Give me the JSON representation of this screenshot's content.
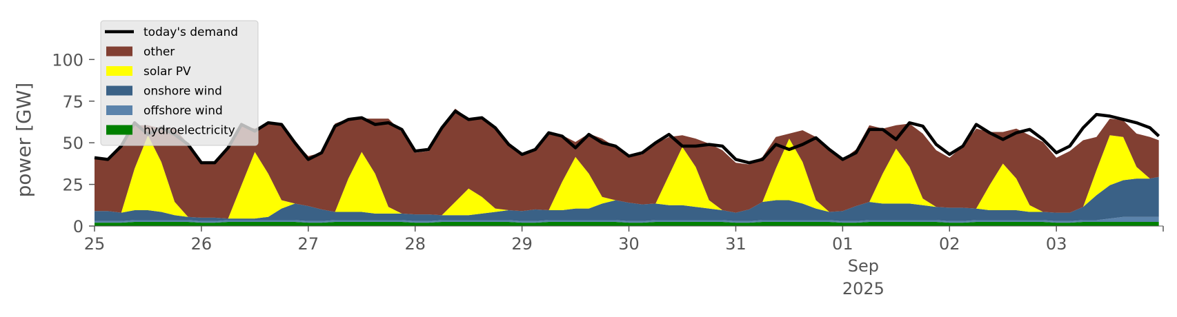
{
  "chart_data": {
    "type": "area",
    "stacked": true,
    "ylabel": "power [GW]",
    "ylim": [
      0,
      120
    ],
    "yticks": [
      0,
      25,
      50,
      75,
      100
    ],
    "xlim": [
      "2025-08-25",
      "2025-09-03T23:59"
    ],
    "xticks": [
      {
        "x": "2025-08-25",
        "label": "25"
      },
      {
        "x": "2025-08-26",
        "label": "26"
      },
      {
        "x": "2025-08-27",
        "label": "27"
      },
      {
        "x": "2025-08-28",
        "label": "28"
      },
      {
        "x": "2025-08-29",
        "label": "29"
      },
      {
        "x": "2025-08-30",
        "label": "30"
      },
      {
        "x": "2025-08-31",
        "label": "31"
      },
      {
        "x": "2025-09-01",
        "label": "01"
      },
      {
        "x": "2025-09-02",
        "label": "02"
      },
      {
        "x": "2025-09-03",
        "label": "03"
      }
    ],
    "x_secondary_label": [
      "Sep",
      "2025"
    ],
    "x": [
      "08-25 00:00",
      "08-25 03:00",
      "08-25 06:00",
      "08-25 09:00",
      "08-25 12:00",
      "08-25 15:00",
      "08-25 18:00",
      "08-25 21:00",
      "08-26 00:00",
      "08-26 03:00",
      "08-26 06:00",
      "08-26 09:00",
      "08-26 12:00",
      "08-26 15:00",
      "08-26 18:00",
      "08-26 21:00",
      "08-27 00:00",
      "08-27 03:00",
      "08-27 06:00",
      "08-27 09:00",
      "08-27 12:00",
      "08-27 15:00",
      "08-27 18:00",
      "08-27 21:00",
      "08-28 00:00",
      "08-28 03:00",
      "08-28 06:00",
      "08-28 09:00",
      "08-28 12:00",
      "08-28 15:00",
      "08-28 18:00",
      "08-28 21:00",
      "08-29 00:00",
      "08-29 03:00",
      "08-29 06:00",
      "08-29 09:00",
      "08-29 12:00",
      "08-29 15:00",
      "08-29 18:00",
      "08-29 21:00",
      "08-30 00:00",
      "08-30 03:00",
      "08-30 06:00",
      "08-30 09:00",
      "08-30 12:00",
      "08-30 15:00",
      "08-30 18:00",
      "08-30 21:00",
      "08-31 00:00",
      "08-31 03:00",
      "08-31 06:00",
      "08-31 09:00",
      "08-31 12:00",
      "08-31 15:00",
      "08-31 18:00",
      "08-31 21:00",
      "09-01 00:00",
      "09-01 03:00",
      "09-01 06:00",
      "09-01 09:00",
      "09-01 12:00",
      "09-01 15:00",
      "09-01 18:00",
      "09-01 21:00",
      "09-02 00:00",
      "09-02 03:00",
      "09-02 06:00",
      "09-02 09:00",
      "09-02 12:00",
      "09-02 15:00",
      "09-02 18:00",
      "09-02 21:00",
      "09-03 00:00",
      "09-03 03:00",
      "09-03 06:00",
      "09-03 09:00",
      "09-03 12:00",
      "09-03 15:00",
      "09-03 18:00",
      "09-03 21:00",
      "09-03 23:00"
    ],
    "series": [
      {
        "name": "hydroelectricity",
        "color": "#008000",
        "values": [
          2,
          2,
          2,
          2.5,
          2.5,
          2.5,
          2.5,
          2.5,
          2,
          2,
          2.5,
          2.5,
          2.5,
          2.5,
          2.5,
          2.5,
          2,
          2,
          2.5,
          2.5,
          2.5,
          2.5,
          2.5,
          2.5,
          2,
          2,
          2.5,
          2.5,
          2.5,
          2.5,
          2.5,
          2.5,
          2,
          2,
          2.5,
          2.5,
          2.5,
          2.5,
          2.5,
          2.5,
          2,
          2,
          2.5,
          2.5,
          2.5,
          2.5,
          2.5,
          2.5,
          2,
          2,
          2.5,
          2.5,
          2.5,
          2.5,
          2.5,
          2.5,
          2,
          2,
          2.5,
          2.5,
          2.5,
          2.5,
          2.5,
          2.5,
          2,
          2,
          2.5,
          2.5,
          2.5,
          2.5,
          2.5,
          2.5,
          2,
          2,
          2.5,
          2.5,
          2.5,
          2.5,
          2.5,
          2.5,
          2.5
        ]
      },
      {
        "name": "offshore wind",
        "color": "#5b83ab",
        "values": [
          1,
          1,
          1,
          1,
          1,
          1,
          1,
          1,
          1,
          1,
          1,
          1,
          1,
          1,
          1,
          1,
          1,
          1,
          1,
          1,
          1,
          1,
          1,
          1,
          1,
          1,
          1,
          1,
          1,
          1,
          1,
          1,
          1,
          1,
          1,
          1,
          1,
          1,
          1,
          1,
          1,
          1,
          1,
          1,
          1,
          1,
          1,
          1,
          1,
          1,
          1,
          1,
          1,
          1,
          1,
          1,
          1,
          1,
          1,
          1,
          1,
          1,
          1,
          1,
          1,
          1,
          1,
          1,
          1,
          1,
          1,
          1,
          1,
          1,
          1,
          1,
          2,
          3,
          3,
          3,
          3
        ]
      },
      {
        "name": "onshore wind",
        "color": "#3a6186",
        "values": [
          6,
          6,
          5,
          6,
          6,
          5,
          3,
          2,
          2,
          2,
          1,
          1,
          1,
          2,
          7,
          10,
          9,
          7,
          5,
          5,
          5,
          4,
          4,
          4,
          4,
          4,
          3,
          3,
          3,
          4,
          5,
          6,
          6,
          7,
          6,
          6,
          7,
          7,
          10,
          12,
          11,
          10,
          10,
          9,
          9,
          8,
          7,
          6,
          5,
          7,
          11,
          12,
          12,
          10,
          7,
          5,
          6,
          9,
          11,
          10,
          10,
          10,
          9,
          8,
          8,
          8,
          7,
          6,
          6,
          6,
          5,
          5,
          5,
          5,
          8,
          15,
          20,
          22,
          23,
          23,
          24
        ]
      },
      {
        "name": "solar PV",
        "color": "#ffff00",
        "values": [
          0,
          0,
          0,
          25,
          45,
          30,
          8,
          0,
          0,
          0,
          0,
          20,
          40,
          26,
          5,
          0,
          0,
          0,
          0,
          20,
          36,
          24,
          4,
          0,
          0,
          0,
          0,
          8,
          16,
          10,
          2,
          0,
          0,
          0,
          0,
          17,
          31,
          21,
          4,
          0,
          0,
          0,
          0,
          18,
          35,
          24,
          5,
          0,
          0,
          0,
          0,
          19,
          37,
          25,
          5,
          0,
          0,
          0,
          0,
          18,
          33,
          22,
          4,
          0,
          0,
          0,
          0,
          15,
          28,
          19,
          4,
          0,
          0,
          0,
          0,
          15,
          30,
          26,
          7,
          0,
          0
        ]
      },
      {
        "name": "other",
        "color": "#813f32",
        "values": [
          32,
          31,
          40,
          26,
          6,
          20,
          44,
          44,
          33,
          33,
          43,
          36,
          14,
          30,
          46,
          37,
          30,
          34,
          53,
          36,
          20,
          33,
          53,
          49,
          37,
          38,
          52,
          56,
          42,
          47,
          48,
          40,
          33,
          36,
          47,
          28,
          9,
          24,
          35,
          32,
          28,
          30,
          36,
          23,
          7,
          17,
          34,
          36,
          30,
          27,
          27,
          19,
          3,
          19,
          38,
          37,
          31,
          34,
          46,
          27,
          14,
          26,
          39,
          34,
          30,
          37,
          48,
          32,
          19,
          30,
          42,
          42,
          33,
          37,
          40,
          20,
          10,
          10,
          20,
          25,
          22
        ]
      },
      {
        "name": "today's demand",
        "type": "line",
        "color": "#000000",
        "values": [
          41,
          40,
          48,
          62,
          55,
          59,
          55,
          49,
          38,
          38,
          47,
          61,
          57,
          62,
          61,
          50,
          40,
          44,
          60,
          64,
          65,
          61,
          62,
          58,
          45,
          46,
          59,
          69,
          64,
          65,
          59,
          49,
          43,
          46,
          56,
          54,
          47,
          55,
          50,
          48,
          42,
          44,
          50,
          55,
          48,
          48,
          49,
          48,
          40,
          38,
          40,
          49,
          46,
          49,
          53,
          46,
          40,
          44,
          58,
          58,
          52,
          62,
          60,
          49,
          43,
          48,
          61,
          56,
          52,
          56,
          58,
          52,
          44,
          48,
          59,
          67,
          66,
          64,
          62,
          59,
          54
        ]
      }
    ],
    "legend": {
      "placement": "top-left",
      "entries": [
        {
          "label": "today's demand",
          "kind": "line",
          "color": "#000000"
        },
        {
          "label": "other",
          "kind": "patch",
          "color": "#813f32"
        },
        {
          "label": "solar PV",
          "kind": "patch",
          "color": "#ffff00"
        },
        {
          "label": "onshore wind",
          "kind": "patch",
          "color": "#3a6186"
        },
        {
          "label": "offshore wind",
          "kind": "patch",
          "color": "#5b83ab"
        },
        {
          "label": "hydroelectricity",
          "kind": "patch",
          "color": "#008000"
        }
      ]
    },
    "grid": false,
    "background": "#ffffff"
  }
}
